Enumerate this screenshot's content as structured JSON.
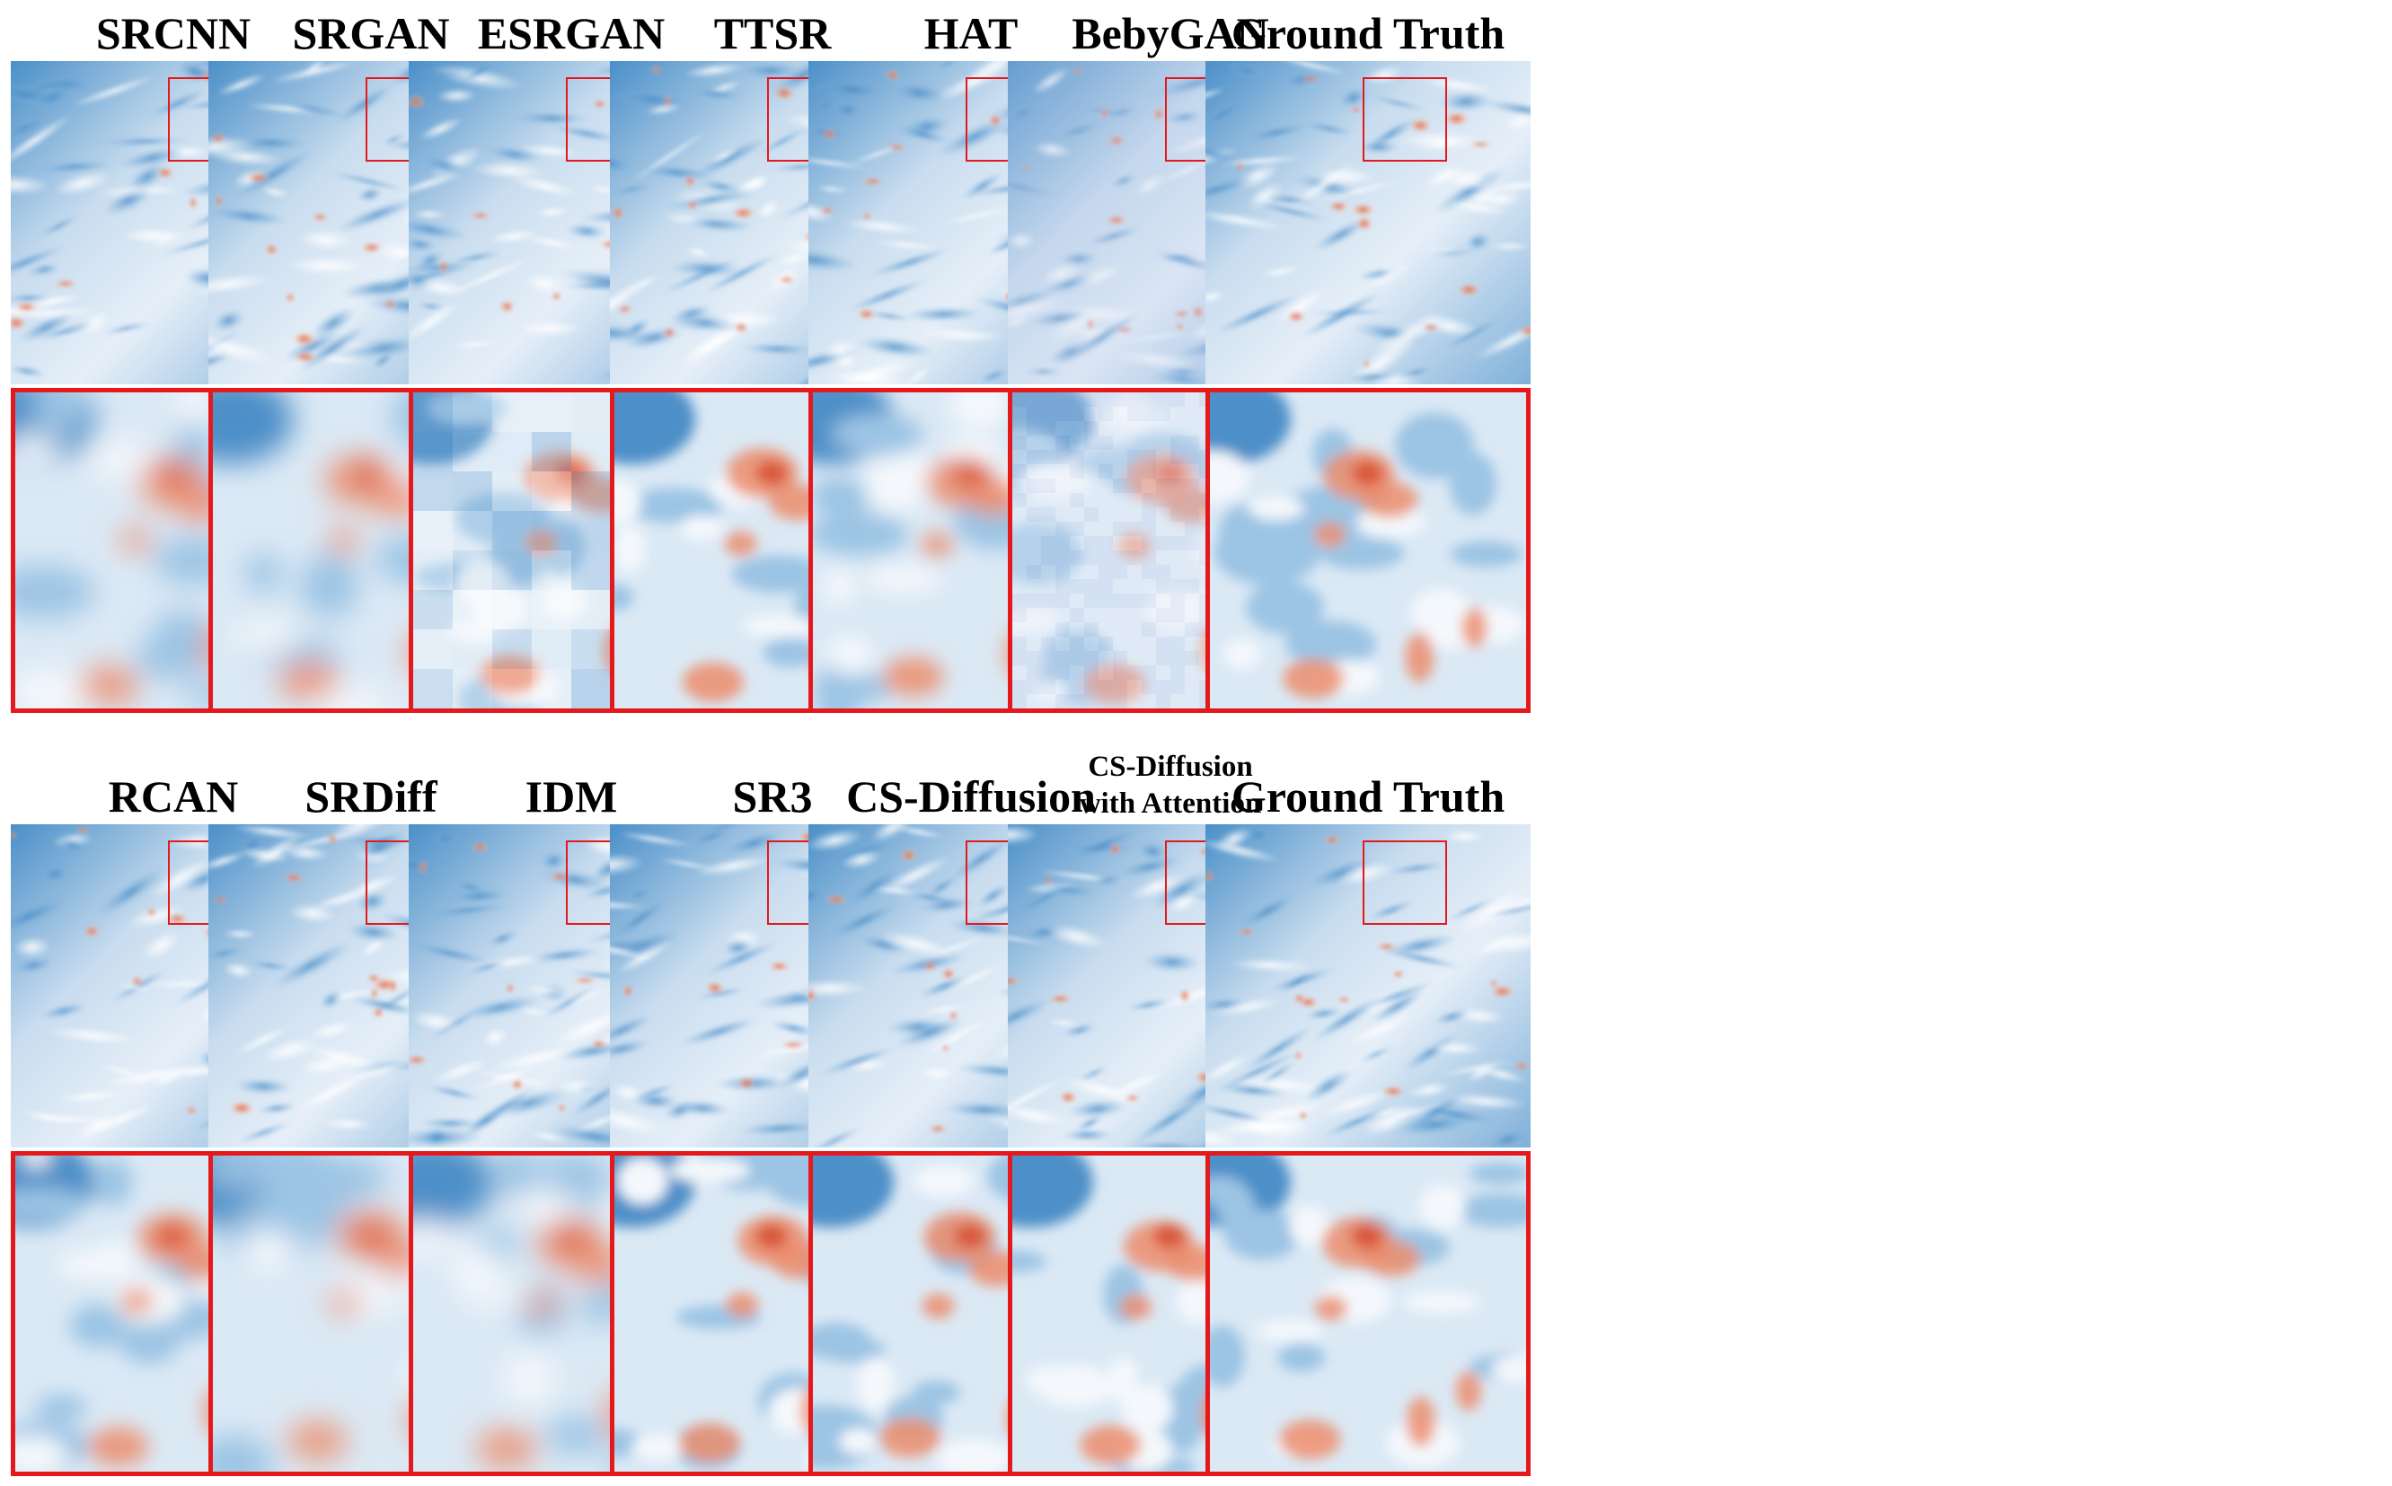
{
  "figure": {
    "rows": [
      {
        "panels": [
          {
            "label": "SRCNN",
            "style": "blurry"
          },
          {
            "label": "SRGAN",
            "style": "blurry"
          },
          {
            "label": "ESRGAN",
            "style": "blocky"
          },
          {
            "label": "TTSR",
            "style": "sharp"
          },
          {
            "label": "HAT",
            "style": "smooth"
          },
          {
            "label": "BebyGAN",
            "style": "noisy"
          },
          {
            "label": "Ground Truth",
            "style": "sharp"
          }
        ]
      },
      {
        "panels": [
          {
            "label": "RCAN",
            "style": "smooth"
          },
          {
            "label": "SRDiff",
            "style": "blurry"
          },
          {
            "label": "IDM",
            "style": "blurry"
          },
          {
            "label": "SR3",
            "style": "sharp"
          },
          {
            "label": "CS-Diffusion",
            "style": "sharp"
          },
          {
            "label": "CS-Diffusion with Attention",
            "label_line1": "CS-Diffusion",
            "label_line2": "with Attention",
            "style": "sharp"
          },
          {
            "label": "Ground Truth",
            "style": "sharp"
          }
        ]
      }
    ],
    "colors": {
      "low": "#2f7cbd",
      "mid": "#eef4fa",
      "high": "#e4714f",
      "roi_border": "#e5191c"
    }
  }
}
